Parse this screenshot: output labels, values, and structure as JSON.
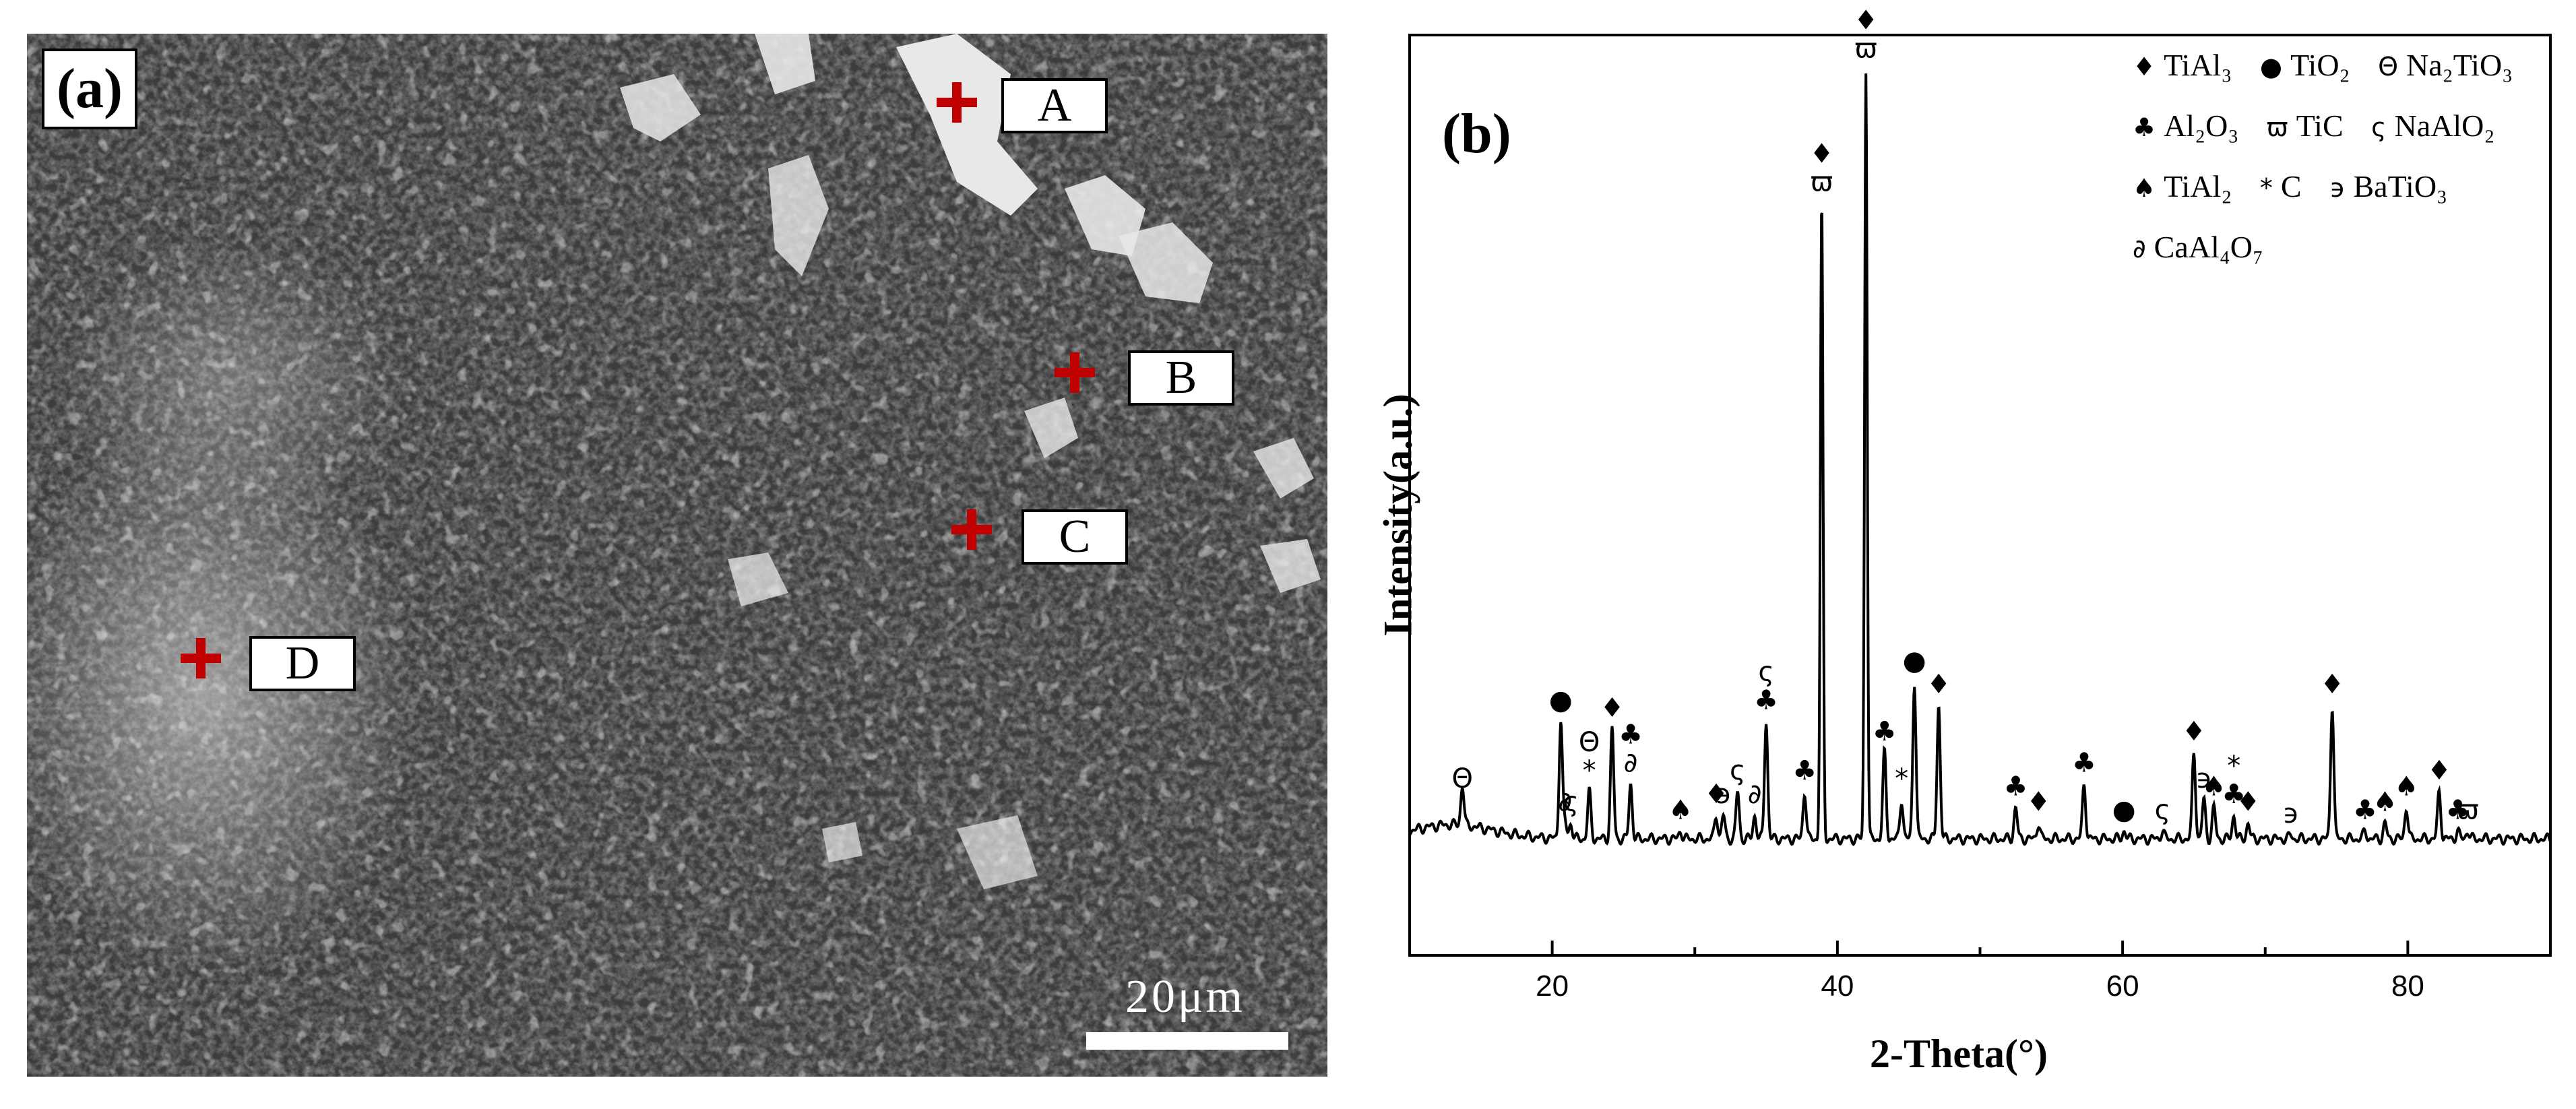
{
  "panel_a": {
    "label": "(a)",
    "points": [
      {
        "id": "A",
        "label": "A"
      },
      {
        "id": "B",
        "label": "B"
      },
      {
        "id": "C",
        "label": "C"
      },
      {
        "id": "D",
        "label": "D"
      }
    ],
    "scale_bar": "20μm",
    "colors": {
      "marker": "#c00000"
    }
  },
  "chart_data": {
    "type": "line",
    "panel_label": "(b)",
    "xlabel": "2-Theta(°)",
    "ylabel": "Intensity(a.u.)",
    "xlim": [
      10,
      90
    ],
    "x_ticks": [
      20,
      40,
      60,
      80
    ],
    "y_ticks_labeled": false,
    "legend_placement": "top-right",
    "legend": [
      {
        "symbol": "♦",
        "name": "TiAl₃"
      },
      {
        "symbol": "●",
        "name": "TiO₂"
      },
      {
        "symbol": "Θ",
        "name": "Na₂TiO₃"
      },
      {
        "symbol": "♣",
        "name": "Al₂O₃"
      },
      {
        "symbol": "ϖ",
        "name": "TiC"
      },
      {
        "symbol": "ς",
        "name": "NaAlO₂"
      },
      {
        "symbol": "♠",
        "name": "TiAl₂"
      },
      {
        "symbol": "*",
        "name": "C"
      },
      {
        "symbol": "϶",
        "name": "BaTiO₃"
      },
      {
        "symbol": "∂",
        "name": "CaAl₄O₇"
      }
    ],
    "baseline": 0.0,
    "peaks": [
      {
        "x": 13.7,
        "y": 0.05,
        "labels": [
          "Θ"
        ]
      },
      {
        "x": 20.6,
        "y": 0.15,
        "labels": [
          "●"
        ]
      },
      {
        "x": 20.9,
        "y": 0.02,
        "labels": [
          "∂"
        ]
      },
      {
        "x": 21.3,
        "y": 0.02,
        "labels": [
          "ς"
        ]
      },
      {
        "x": 22.6,
        "y": 0.06,
        "labels": [
          "*",
          "Θ"
        ]
      },
      {
        "x": 24.2,
        "y": 0.14,
        "labels": [
          "♦"
        ]
      },
      {
        "x": 25.5,
        "y": 0.07,
        "labels": [
          "∂",
          "♣"
        ]
      },
      {
        "x": 29.0,
        "y": 0.01,
        "labels": [
          "♠"
        ]
      },
      {
        "x": 31.5,
        "y": 0.03,
        "labels": [
          "♦"
        ]
      },
      {
        "x": 32.0,
        "y": 0.03,
        "labels": [
          "϶"
        ]
      },
      {
        "x": 33.0,
        "y": 0.06,
        "labels": [
          "ς"
        ]
      },
      {
        "x": 34.2,
        "y": 0.03,
        "labels": [
          "∂"
        ]
      },
      {
        "x": 35.0,
        "y": 0.15,
        "labels": [
          "♣",
          "ς"
        ]
      },
      {
        "x": 37.7,
        "y": 0.06,
        "labels": [
          "♣"
        ]
      },
      {
        "x": 38.9,
        "y": 0.81,
        "labels": [
          "ϖ",
          "♦"
        ]
      },
      {
        "x": 42.0,
        "y": 0.98,
        "labels": [
          "ϖ",
          "♦"
        ]
      },
      {
        "x": 43.3,
        "y": 0.11,
        "labels": [
          "♣"
        ]
      },
      {
        "x": 44.5,
        "y": 0.05,
        "labels": [
          "*"
        ]
      },
      {
        "x": 45.4,
        "y": 0.2,
        "labels": [
          "●"
        ]
      },
      {
        "x": 47.1,
        "y": 0.17,
        "labels": [
          "♦"
        ]
      },
      {
        "x": 52.5,
        "y": 0.04,
        "labels": [
          "♣"
        ]
      },
      {
        "x": 54.1,
        "y": 0.02,
        "labels": [
          "♦"
        ]
      },
      {
        "x": 57.3,
        "y": 0.07,
        "labels": [
          "♣"
        ]
      },
      {
        "x": 60.1,
        "y": 0.01,
        "labels": [
          "●"
        ]
      },
      {
        "x": 62.8,
        "y": 0.01,
        "labels": [
          "ς"
        ]
      },
      {
        "x": 65.0,
        "y": 0.11,
        "labels": [
          "♦"
        ]
      },
      {
        "x": 65.7,
        "y": 0.05,
        "labels": [
          "϶"
        ]
      },
      {
        "x": 66.4,
        "y": 0.04,
        "labels": [
          "♠"
        ]
      },
      {
        "x": 67.8,
        "y": 0.03,
        "labels": [
          "♣",
          "*"
        ]
      },
      {
        "x": 68.8,
        "y": 0.02,
        "labels": [
          "♦"
        ]
      },
      {
        "x": 71.8,
        "y": 0.005,
        "labels": [
          "϶"
        ]
      },
      {
        "x": 74.7,
        "y": 0.17,
        "labels": [
          "♦"
        ]
      },
      {
        "x": 77.0,
        "y": 0.01,
        "labels": [
          "♣"
        ]
      },
      {
        "x": 78.4,
        "y": 0.02,
        "labels": [
          "♠"
        ]
      },
      {
        "x": 79.9,
        "y": 0.04,
        "labels": [
          "♠"
        ]
      },
      {
        "x": 82.2,
        "y": 0.06,
        "labels": [
          "♦"
        ]
      },
      {
        "x": 83.5,
        "y": 0.01,
        "labels": [
          "♣"
        ]
      },
      {
        "x": 84.2,
        "y": 0.01,
        "labels": [
          "ϖ"
        ]
      }
    ]
  }
}
